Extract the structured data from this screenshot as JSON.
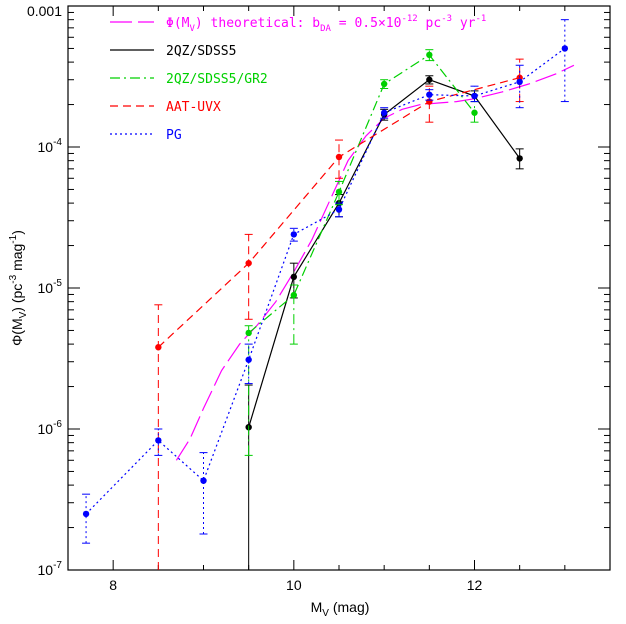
{
  "chart_data": {
    "type": "line",
    "xlabel": {
      "main": "M",
      "sub": "V",
      "tail": " (mag)"
    },
    "ylabel": {
      "phi": "Φ(M",
      "sub": "V",
      "mid": ") (pc",
      "sup1": "-3",
      "mid2": " mag",
      "sup2": "-1",
      "end": ")"
    },
    "xlim": [
      7.5,
      13.5
    ],
    "ylim": [
      1e-07,
      0.001
    ],
    "yscale": "log",
    "grid": false,
    "legend_position": "top-left",
    "x_ticks": [
      "8",
      "10",
      "12"
    ],
    "y_ticks": [
      {
        "value": 1e-07,
        "base": "10",
        "exp": "-7"
      },
      {
        "value": 1e-06,
        "base": "10",
        "exp": "-6"
      },
      {
        "value": 1e-05,
        "base": "10",
        "exp": "-5"
      },
      {
        "value": 0.0001,
        "base": "10",
        "exp": "-4"
      },
      {
        "value": 0.001,
        "label": "0.001"
      }
    ],
    "legend": [
      {
        "series": "theory",
        "parts": [
          {
            "t": "Φ(M"
          },
          {
            "t": "V",
            "sub": true
          },
          {
            "t": ") theoretical: b"
          },
          {
            "t": "DA",
            "sub": true
          },
          {
            "t": " = 0.5×10"
          },
          {
            "t": "-12",
            "sup": true
          },
          {
            "t": " pc"
          },
          {
            "t": "-3",
            "sup": true
          },
          {
            "t": " yr"
          },
          {
            "t": "-1",
            "sup": true
          }
        ]
      },
      {
        "series": "2qz",
        "parts": [
          {
            "t": "2QZ/SDSS5"
          }
        ]
      },
      {
        "series": "gr2",
        "parts": [
          {
            "t": "2QZ/SDSS5/GR2"
          }
        ]
      },
      {
        "series": "aat",
        "parts": [
          {
            "t": "AAT-UVX"
          }
        ]
      },
      {
        "series": "pg",
        "parts": [
          {
            "t": "PG"
          }
        ]
      }
    ],
    "series": [
      {
        "id": "theory",
        "name": "Φ(M_V) theoretical: b_DA = 0.5×10^-12 pc^-3 yr^-1",
        "color": "#ff00ff",
        "dash": "22 6",
        "markers": false,
        "points": [
          {
            "x": 8.7,
            "y": 6e-07
          },
          {
            "x": 8.85,
            "y": 8.5e-07
          },
          {
            "x": 9.0,
            "y": 1.4e-06
          },
          {
            "x": 9.2,
            "y": 2.6e-06
          },
          {
            "x": 9.4,
            "y": 4e-06
          },
          {
            "x": 9.6,
            "y": 5.5e-06
          },
          {
            "x": 9.8,
            "y": 8e-06
          },
          {
            "x": 10.0,
            "y": 1.3e-05
          },
          {
            "x": 10.2,
            "y": 2.2e-05
          },
          {
            "x": 10.4,
            "y": 4.2e-05
          },
          {
            "x": 10.6,
            "y": 8e-05
          },
          {
            "x": 10.8,
            "y": 0.00012
          },
          {
            "x": 11.0,
            "y": 0.00016
          },
          {
            "x": 11.2,
            "y": 0.000185
          },
          {
            "x": 11.4,
            "y": 0.0002
          },
          {
            "x": 11.6,
            "y": 0.000205
          },
          {
            "x": 11.8,
            "y": 0.00021
          },
          {
            "x": 12.0,
            "y": 0.00022
          },
          {
            "x": 12.3,
            "y": 0.000245
          },
          {
            "x": 12.6,
            "y": 0.00028
          },
          {
            "x": 12.9,
            "y": 0.00033
          },
          {
            "x": 13.1,
            "y": 0.00038
          }
        ]
      },
      {
        "id": "2qz",
        "name": "2QZ/SDSS5",
        "color": "#000000",
        "dash": "",
        "markers": true,
        "points": [
          {
            "x": 9.5,
            "y": 1.03e-06,
            "lo": 1e-07,
            "hi": 2.05e-06
          },
          {
            "x": 10.0,
            "y": 1.2e-05,
            "lo": 8.5e-06,
            "hi": 1.5e-05
          },
          {
            "x": 10.5,
            "y": 4e-05,
            "lo": 3.2e-05,
            "hi": 4.6e-05
          },
          {
            "x": 11.0,
            "y": 0.00017,
            "lo": 0.000155,
            "hi": 0.000185
          },
          {
            "x": 11.5,
            "y": 0.0003,
            "lo": 0.00028,
            "hi": 0.00032
          },
          {
            "x": 12.0,
            "y": 0.00023,
            "lo": 0.00021,
            "hi": 0.00025
          },
          {
            "x": 12.5,
            "y": 8.3e-05,
            "lo": 7e-05,
            "hi": 9.7e-05
          }
        ]
      },
      {
        "id": "gr2",
        "name": "2QZ/SDSS5/GR2",
        "color": "#00d000",
        "dash": "10 4 2 4",
        "markers": true,
        "points": [
          {
            "x": 9.5,
            "y": 4.8e-06,
            "lo": 6.5e-07,
            "hi": 5.4e-06
          },
          {
            "x": 10.0,
            "y": 8.9e-06,
            "lo": 4e-06,
            "hi": 1.05e-05
          },
          {
            "x": 10.5,
            "y": 4.8e-05,
            "lo": 3.9e-05,
            "hi": 5.7e-05
          },
          {
            "x": 11.0,
            "y": 0.00028,
            "lo": 0.00026,
            "hi": 0.0003
          },
          {
            "x": 11.5,
            "y": 0.00045,
            "lo": 0.00041,
            "hi": 0.00049
          },
          {
            "x": 12.0,
            "y": 0.000175,
            "lo": 0.00015,
            "hi": 0.00021
          }
        ]
      },
      {
        "id": "aat",
        "name": "AAT-UVX",
        "color": "#ff0000",
        "dash": "8 5",
        "markers": true,
        "points": [
          {
            "x": 8.5,
            "y": 3.8e-06,
            "lo": 1e-07,
            "hi": 7.6e-06
          },
          {
            "x": 9.5,
            "y": 1.5e-05,
            "lo": 6e-06,
            "hi": 2.4e-05
          },
          {
            "x": 10.5,
            "y": 8.5e-05,
            "lo": 6e-05,
            "hi": 0.000112
          },
          {
            "x": 11.5,
            "y": 0.00021,
            "lo": 0.00015,
            "hi": 0.00027
          },
          {
            "x": 12.5,
            "y": 0.00031,
            "lo": 0.00021,
            "hi": 0.00042
          }
        ]
      },
      {
        "id": "pg",
        "name": "PG",
        "color": "#0000ff",
        "dash": "2 3",
        "markers": true,
        "points": [
          {
            "x": 7.7,
            "y": 2.5e-07,
            "lo": 1.55e-07,
            "hi": 3.45e-07
          },
          {
            "x": 8.5,
            "y": 8.3e-07,
            "lo": 6.5e-07,
            "hi": 1e-06
          },
          {
            "x": 9.0,
            "y": 4.3e-07,
            "lo": 1.8e-07,
            "hi": 6.8e-07
          },
          {
            "x": 9.5,
            "y": 3.1e-06,
            "lo": 2.1e-06,
            "hi": 4e-06
          },
          {
            "x": 10.0,
            "y": 2.4e-05,
            "lo": 2.15e-05,
            "hi": 2.65e-05
          },
          {
            "x": 10.5,
            "y": 3.6e-05,
            "lo": 3.2e-05,
            "hi": 4e-05
          },
          {
            "x": 11.0,
            "y": 0.000175,
            "lo": 0.00016,
            "hi": 0.00019
          },
          {
            "x": 11.5,
            "y": 0.000235,
            "lo": 0.000215,
            "hi": 0.000255
          },
          {
            "x": 12.0,
            "y": 0.00023,
            "lo": 0.00021,
            "hi": 0.00027
          },
          {
            "x": 12.5,
            "y": 0.00029,
            "lo": 0.00019,
            "hi": 0.00038
          },
          {
            "x": 13.0,
            "y": 0.0005,
            "lo": 0.00021,
            "hi": 0.0008
          }
        ]
      }
    ]
  }
}
